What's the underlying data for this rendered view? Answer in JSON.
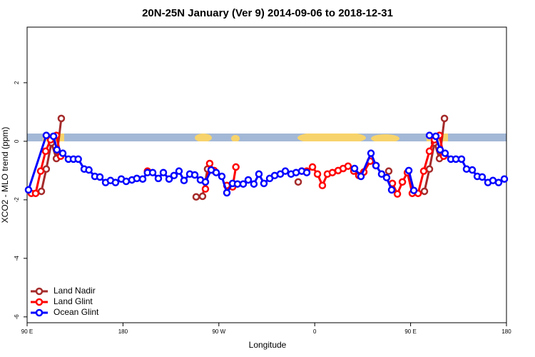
{
  "chart_data": {
    "type": "line",
    "title": "20N-25N January (Ver 9)   2014-09-06 to 2018-12-31",
    "x_label": "Longitude",
    "y_label": "XCO2 - MLO trend (ppm)",
    "xlim": [
      90,
      540
    ],
    "ylim": [
      -6.2,
      3.9
    ],
    "xticks": [
      {
        "value": 90,
        "label": "90 E"
      },
      {
        "value": 180,
        "label": "180"
      },
      {
        "value": 270,
        "label": "90 W"
      },
      {
        "value": 360,
        "label": "0"
      },
      {
        "value": 450,
        "label": "90 E"
      },
      {
        "value": 540,
        "label": "180"
      }
    ],
    "yticks": [
      -6,
      -4,
      -2,
      0,
      2
    ],
    "legend": "bottom-left",
    "series": [
      {
        "name": "Land Nadir",
        "color": "#a52a2a",
        "x": [
          103.4,
          108,
          112.8,
          117.5,
          122.1,
          null,
          248.7,
          254.7,
          259.4,
          null,
          283.5,
          null,
          344.5,
          null,
          429.5,
          null,
          463,
          467.7,
          472.4,
          477.1,
          481.8
        ],
        "values": [
          -1.71,
          -0.95,
          -0.05,
          -0.59,
          0.78,
          null,
          -1.9,
          -1.88,
          -0.95,
          null,
          -1.51,
          null,
          -1.39,
          null,
          -1.02,
          null,
          -1.71,
          -0.95,
          -0.05,
          -0.59,
          0.78
        ]
      },
      {
        "name": "Land Glint",
        "color": "#ff0000",
        "x": [
          94,
          98,
          102.7,
          107.4,
          112.1,
          117.5,
          121.5,
          null,
          203,
          null,
          257.4,
          261.4,
          265.5,
          null,
          277.5,
          282.9,
          286,
          null,
          347.8,
          352.5,
          357.9,
          362.6,
          367.2,
          371.9,
          376.6,
          382,
          386.7,
          391.3,
          396.7,
          401.4,
          406.1,
          412.1,
          417.5,
          null,
          432.9,
          437.6,
          442.3,
          447,
          451.6,
          457,
          462.3,
          467.7,
          472.4,
          477.1,
          481.1
        ],
        "values": [
          -1.78,
          -1.78,
          -1.02,
          -0.34,
          0.05,
          0.2,
          -0.51,
          null,
          -1.02,
          null,
          -1.63,
          -0.76,
          -1.0,
          null,
          -1.51,
          -1.56,
          -0.88,
          null,
          -1.02,
          -1.02,
          -0.88,
          -1.12,
          -1.51,
          -1.12,
          -1.07,
          -1.0,
          -0.93,
          -0.85,
          -1.02,
          -1.17,
          -1.05,
          -0.68,
          -0.83,
          null,
          -1.44,
          -1.8,
          -1.39,
          -1.07,
          -1.78,
          -1.78,
          -1.02,
          -0.34,
          0.05,
          0.2,
          -0.51
        ]
      },
      {
        "name": "Ocean Glint",
        "color": "#0000ff",
        "x": [
          91.3,
          108,
          114.8,
          118,
          123.5,
          128.8,
          133.5,
          138,
          143.6,
          148,
          153.6,
          158.3,
          163.7,
          168.3,
          173,
          178.4,
          183,
          188.4,
          193,
          198.5,
          203,
          207.9,
          213.2,
          217.9,
          223.3,
          227.9,
          232.6,
          237.3,
          242.7,
          247.4,
          252.7,
          257.4,
          262.8,
          267.5,
          272.8,
          277.5,
          282.9,
          287.5,
          292.9,
          297.6,
          302.9,
          307.6,
          312.3,
          317.7,
          322.4,
          327.7,
          332.4,
          337.8,
          342.5,
          347.8,
          352.5,
          null,
          397.4,
          403.4,
          412.8,
          417.5,
          422.8,
          427.5,
          432.2,
          null,
          448.3,
          453,
          null,
          467.7,
          473.7,
          477.7,
          482.4,
          487.8,
          492.5,
          497.8,
          502.5,
          507.9,
          512.6,
          517.2,
          522.6,
          527.3,
          532.6,
          538
        ],
        "values": [
          -1.66,
          0.2,
          0.17,
          -0.29,
          -0.41,
          -0.61,
          -0.61,
          -0.61,
          -0.95,
          -0.98,
          -1.2,
          -1.22,
          -1.41,
          -1.34,
          -1.41,
          -1.29,
          -1.37,
          -1.32,
          -1.27,
          -1.29,
          -1.07,
          -1.07,
          -1.27,
          -1.07,
          -1.29,
          -1.17,
          -1.02,
          -1.34,
          -1.12,
          -1.15,
          -1.32,
          -1.39,
          -0.98,
          -1.07,
          -1.2,
          -1.76,
          -1.44,
          -1.46,
          -1.46,
          -1.32,
          -1.46,
          -1.12,
          -1.44,
          -1.27,
          -1.17,
          -1.12,
          -1.02,
          -1.12,
          -1.07,
          -1.02,
          -1.07,
          null,
          -0.93,
          -1.2,
          -0.41,
          -0.83,
          -1.12,
          -1.24,
          -1.66,
          null,
          -1.0,
          -1.68,
          null,
          0.2,
          0.17,
          -0.29,
          -0.41,
          -0.61,
          -0.61,
          -0.61,
          -0.95,
          -0.98,
          -1.2,
          -1.22,
          -1.41,
          -1.34,
          -1.41,
          -1.29
        ]
      }
    ]
  }
}
